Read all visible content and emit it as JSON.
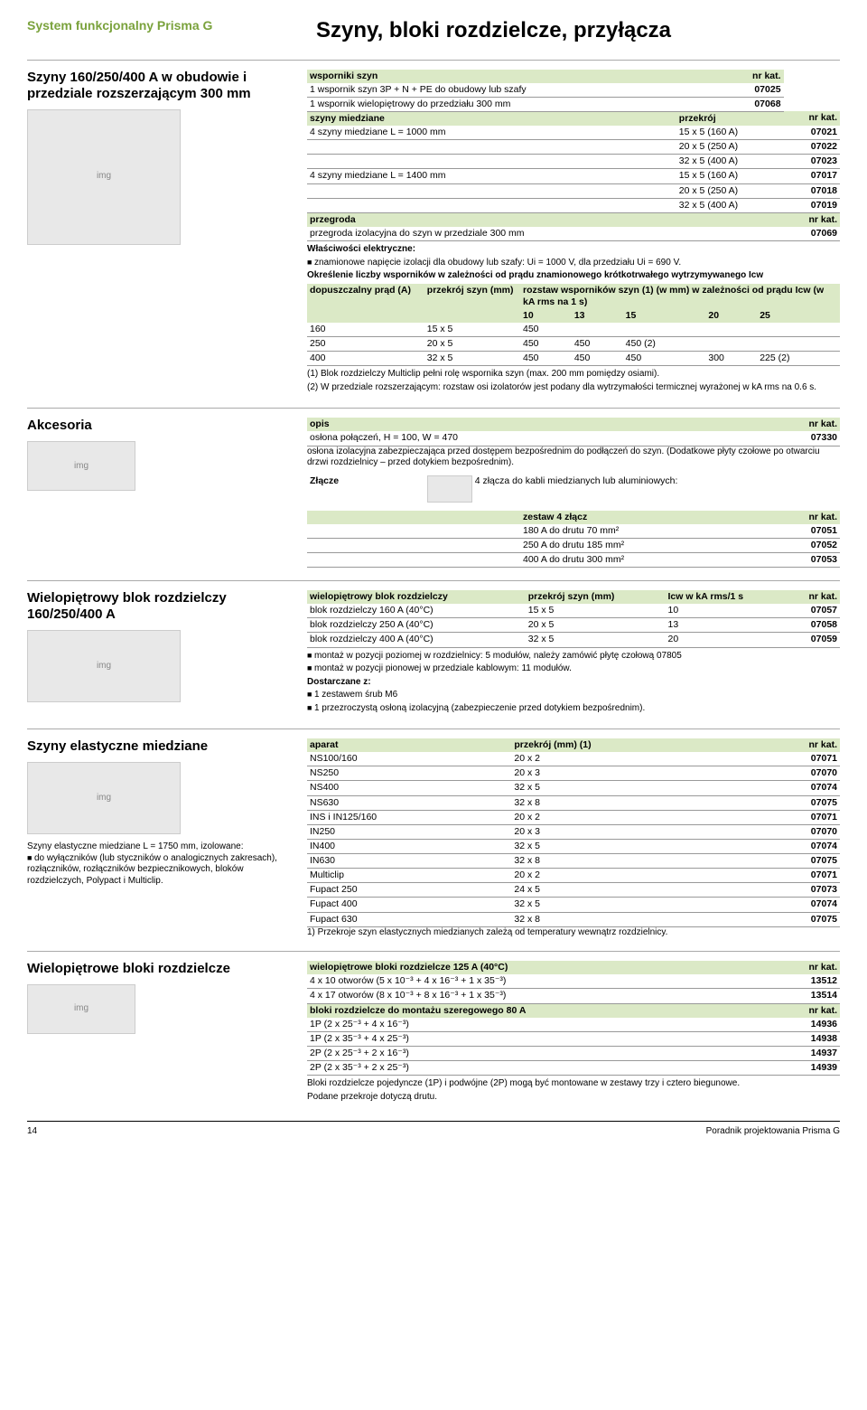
{
  "meta": {
    "system_label": "System funkcjonalny Prisma G",
    "page_title": "Szyny, bloki rozdzielcze, przyłącza",
    "footer_page": "14",
    "footer_doc": "Poradnik projektowania Prisma G"
  },
  "s1": {
    "heading": "Szyny 160/250/400 A w obudowie i przedziale rozszerzającym 300 mm",
    "t1_header": {
      "a": "wsporniki szyn",
      "b": "nr kat."
    },
    "t1_rows": [
      {
        "a": "1 wspornik szyn 3P + N + PE do obudowy lub szafy",
        "b": "07025"
      },
      {
        "a": "1 wspornik wielopiętrowy do przedziału 300 mm",
        "b": "07068"
      }
    ],
    "t2_header": {
      "a": "szyny miedziane",
      "b": "przekrój",
      "c": "nr kat."
    },
    "t2_rows": [
      {
        "a": "4 szyny miedziane L = 1000 mm",
        "b": "15 x 5 (160 A)",
        "c": "07021"
      },
      {
        "a": "",
        "b": "20 x 5 (250 A)",
        "c": "07022"
      },
      {
        "a": "",
        "b": "32 x 5 (400 A)",
        "c": "07023"
      },
      {
        "a": "4 szyny miedziane L = 1400 mm",
        "b": "15 x 5 (160 A)",
        "c": "07017"
      },
      {
        "a": "",
        "b": "20 x 5 (250 A)",
        "c": "07018"
      },
      {
        "a": "",
        "b": "32 x 5 (400 A)",
        "c": "07019"
      }
    ],
    "t3_header": {
      "a": "przegroda",
      "b": "nr kat."
    },
    "t3_rows": [
      {
        "a": "przegroda izolacyjna do szyn w przedziale 300 mm",
        "b": "07069"
      }
    ],
    "props_title": "Właściwości elektryczne:",
    "props_bullet": "znamionowe napięcie izolacji dla obudowy lub szafy: Ui = 1000 V, dla przedziału Ui = 690 V.",
    "spacing_title": "Określenie liczby wsporników w zależności od prądu znamionowego krótkotrwałego wytrzymywanego Icw",
    "sp_h1": "dopuszczalny prąd (A)",
    "sp_h2": "przekrój szyn (mm)",
    "sp_h3": "rozstaw wsporników szyn (1) (w mm) w zależności od prądu Icw (w kA rms na 1 s)",
    "sp_cols": [
      "10",
      "13",
      "15",
      "20",
      "25"
    ],
    "sp_rows": [
      {
        "a": "160",
        "b": "15 x 5",
        "v": [
          "450",
          "",
          "",
          "",
          ""
        ]
      },
      {
        "a": "250",
        "b": "20 x 5",
        "v": [
          "450",
          "450",
          "450 (2)",
          "",
          ""
        ]
      },
      {
        "a": "400",
        "b": "32 x 5",
        "v": [
          "450",
          "450",
          "450",
          "300",
          "225 (2)"
        ]
      }
    ],
    "note1": "(1) Blok rozdzielczy Multiclip pełni rolę wspornika szyn (max. 200 mm pomiędzy osiami).",
    "note2": "(2) W przedziale rozszerzającym: rozstaw osi izolatorów jest podany dla wytrzymałości termicznej wyrażonej w kA rms na 0.6 s."
  },
  "s2": {
    "heading": "Akcesoria",
    "t1_header": {
      "a": "opis",
      "b": "nr kat."
    },
    "t1_rows": [
      {
        "a": "osłona połączeń, H = 100, W = 470",
        "b": "07330"
      }
    ],
    "desc": "osłona izolacyjna zabezpieczająca przed dostępem bezpośrednim do podłączeń do szyn. (Dodatkowe płyty czołowe po otwarciu drzwi rozdzielnicy – przed dotykiem bezpośrednim).",
    "zl_label": "Złącze",
    "zl_text": "4 złącza do kabli miedzianych lub aluminiowych:",
    "zl_header": {
      "a": "zestaw 4 złącz",
      "b": "nr kat."
    },
    "zl_rows": [
      {
        "a": "180 A do drutu 70 mm²",
        "b": "07051"
      },
      {
        "a": "250 A do drutu 185 mm²",
        "b": "07052"
      },
      {
        "a": "400 A do drutu 300 mm²",
        "b": "07053"
      }
    ]
  },
  "s3": {
    "heading": "Wielopiętrowy blok rozdzielczy 160/250/400 A",
    "t_header": {
      "a": "wielopiętrowy blok rozdzielczy",
      "b": "przekrój szyn (mm)",
      "c": "Icw w kA rms/1 s",
      "d": "nr kat."
    },
    "t_rows": [
      {
        "a": "blok rozdzielczy 160 A (40°C)",
        "b": "15 x 5",
        "c": "10",
        "d": "07057"
      },
      {
        "a": "blok rozdzielczy 250 A (40°C)",
        "b": "20 x 5",
        "c": "13",
        "d": "07058"
      },
      {
        "a": "blok rozdzielczy 400 A (40°C)",
        "b": "32 x 5",
        "c": "20",
        "d": "07059"
      }
    ],
    "b1": "montaż w pozycji poziomej w rozdzielnicy: 5 modułów, należy zamówić płytę czołową 07805",
    "b2": "montaż w pozycji pionowej w przedziale kablowym: 11 modułów.",
    "d_title": "Dostarczane z:",
    "d1": "1 zestawem śrub M6",
    "d2": "1 przezroczystą osłoną izolacyjną (zabezpieczenie przed dotykiem bezpośrednim)."
  },
  "s4": {
    "heading": "Szyny elastyczne miedziane",
    "desc1": "Szyny elastyczne miedziane L = 1750 mm, izolowane:",
    "desc2": "do wyłączników (lub styczników o analogicznych zakresach), rozłączników, rozłączników bezpiecznikowych, bloków rozdzielczych, Polypact i Multiclip.",
    "t_header": {
      "a": "aparat",
      "b": "przekrój (mm) (1)",
      "c": "nr kat."
    },
    "t_rows": [
      {
        "a": "NS100/160",
        "b": "20 x 2",
        "c": "07071"
      },
      {
        "a": "NS250",
        "b": "20 x 3",
        "c": "07070"
      },
      {
        "a": "NS400",
        "b": "32 x 5",
        "c": "07074"
      },
      {
        "a": "NS630",
        "b": "32 x 8",
        "c": "07075"
      },
      {
        "a": "INS i IN125/160",
        "b": "20 x 2",
        "c": "07071"
      },
      {
        "a": "IN250",
        "b": "20 x 3",
        "c": "07070"
      },
      {
        "a": "IN400",
        "b": "32 x 5",
        "c": "07074"
      },
      {
        "a": "IN630",
        "b": "32 x 8",
        "c": "07075"
      },
      {
        "a": "Multiclip",
        "b": "20 x 2",
        "c": "07071"
      },
      {
        "a": "Fupact 250",
        "b": "24 x 5",
        "c": "07073"
      },
      {
        "a": "Fupact 400",
        "b": "32 x 5",
        "c": "07074"
      },
      {
        "a": "Fupact 630",
        "b": "32 x 8",
        "c": "07075"
      }
    ],
    "note": "1) Przekroje szyn elastycznych miedzianych zależą od temperatury wewnątrz rozdzielnicy."
  },
  "s5": {
    "heading": "Wielopiętrowe bloki rozdzielcze",
    "t1_header": {
      "a": "wielopiętrowe bloki rozdzielcze 125 A (40°C)",
      "b": "nr kat."
    },
    "t1_rows": [
      {
        "a": "4 x 10 otworów (5 x 10⁻³ + 4 x 16⁻³ + 1 x 35⁻³)",
        "b": "13512"
      },
      {
        "a": "4 x 17 otworów (8 x 10⁻³ + 8 x 16⁻³ + 1 x 35⁻³)",
        "b": "13514"
      }
    ],
    "t2_header": {
      "a": "bloki rozdzielcze do montażu szeregowego 80 A",
      "b": "nr kat."
    },
    "t2_rows": [
      {
        "a": "1P (2 x 25⁻³ + 4 x 16⁻³)",
        "b": "14936"
      },
      {
        "a": "1P (2 x 35⁻³ + 4 x 25⁻³)",
        "b": "14938"
      },
      {
        "a": "2P (2 x 25⁻³ + 2 x 16⁻³)",
        "b": "14937"
      },
      {
        "a": "2P (2 x 35⁻³ + 2 x 25⁻³)",
        "b": "14939"
      }
    ],
    "note1": "Bloki rozdzielcze pojedyncze (1P) i podwójne (2P) mogą być montowane w zestawy trzy i cztero biegunowe.",
    "note2": "Podane przekroje dotyczą drutu."
  }
}
